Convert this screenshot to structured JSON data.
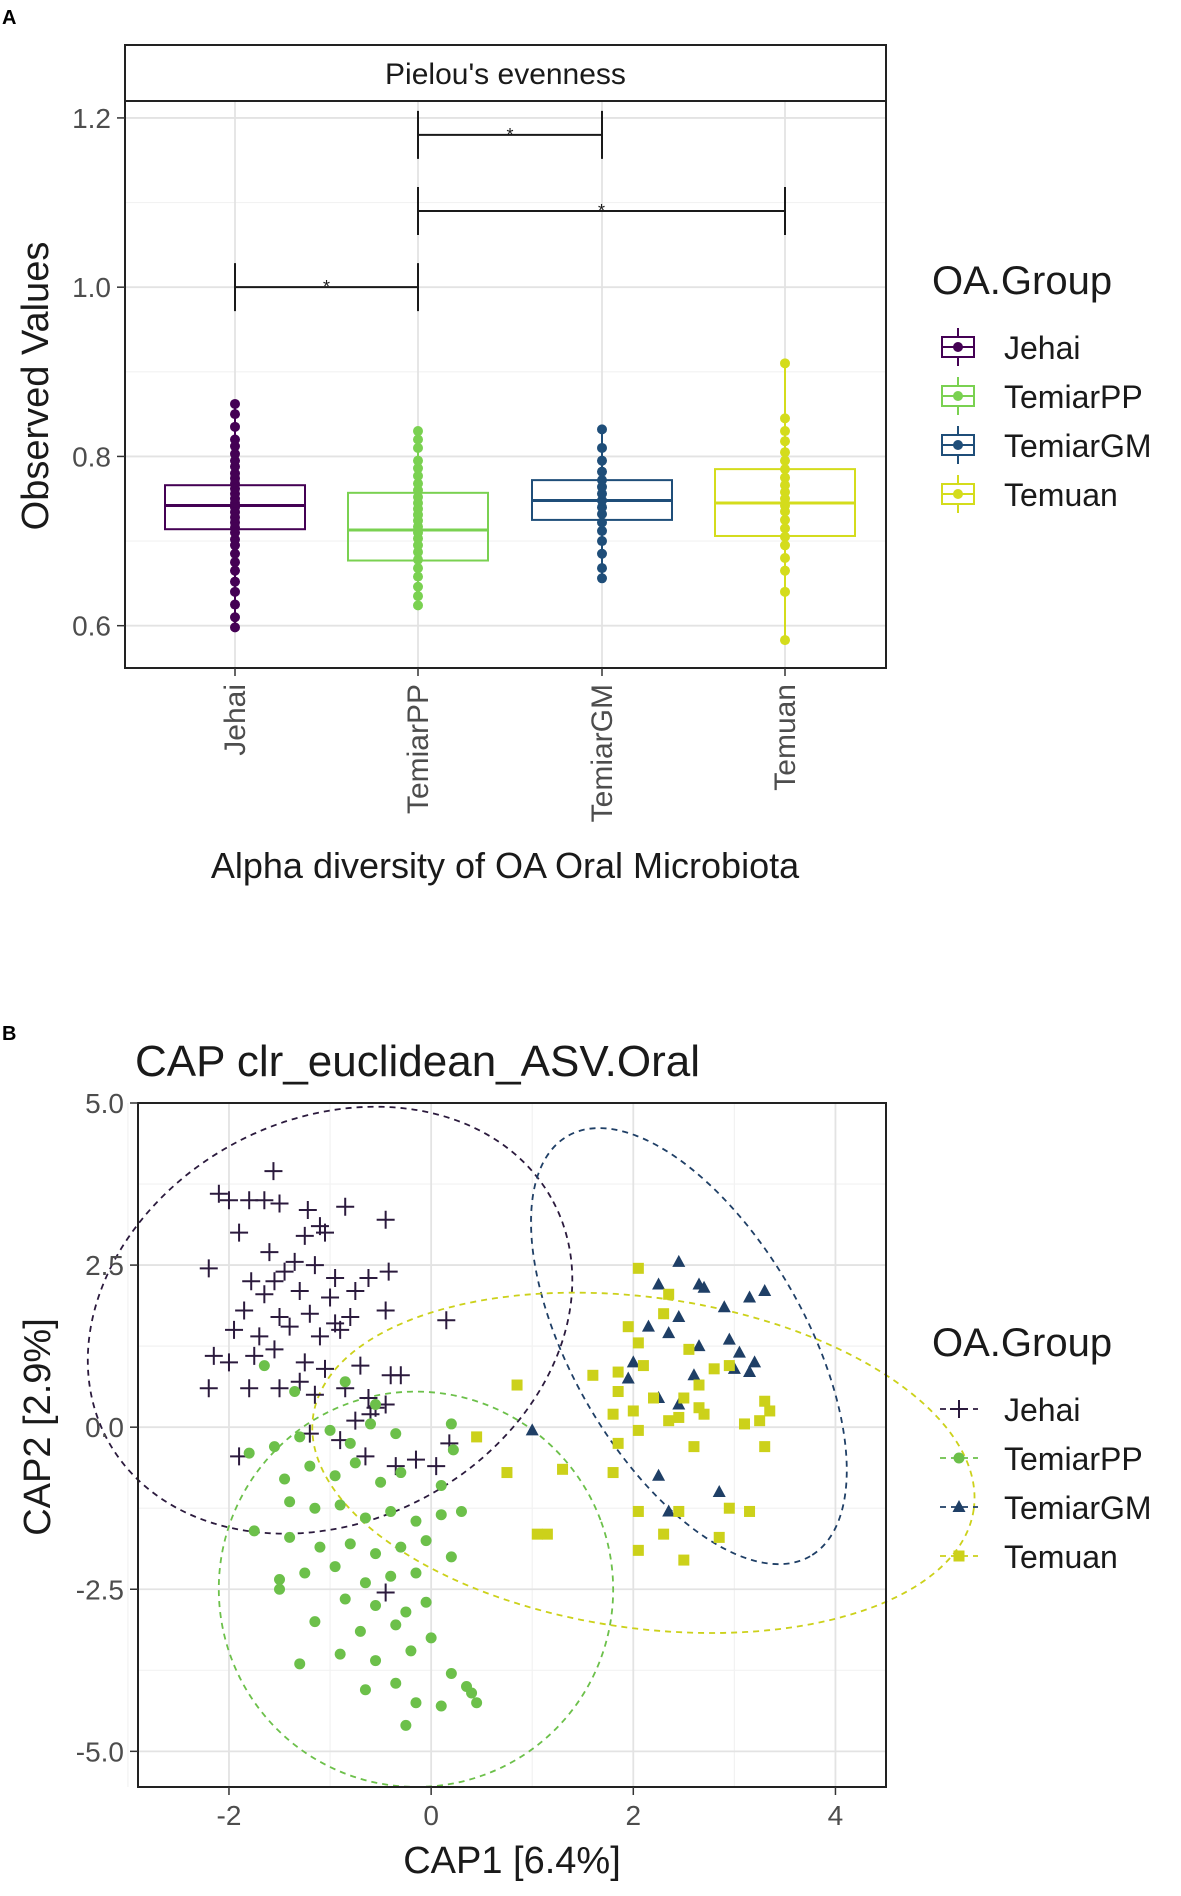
{
  "chart_data": [
    {
      "panel_label": "A",
      "type": "box",
      "strip_title": "Pielou's evenness",
      "ylabel": "Observed Values",
      "xlabel": "Alpha diversity of OA Oral Microbiota",
      "ylim": [
        0.55,
        1.22
      ],
      "yticks": [
        0.6,
        0.8,
        1.0,
        1.2
      ],
      "ytick_labels": [
        "0.6",
        "0.8",
        "1.0",
        "1.2"
      ],
      "categories": [
        "Jehai",
        "TemiarPP",
        "TemiarGM",
        "Temuan"
      ],
      "colors": [
        "#440154",
        "#7AD151",
        "#1F4E79",
        "#D4DC1C"
      ],
      "boxes": [
        {
          "name": "Jehai",
          "q1": 0.714,
          "median": 0.742,
          "q3": 0.766,
          "min": 0.598,
          "max": 0.862,
          "points": [
            0.598,
            0.61,
            0.625,
            0.64,
            0.652,
            0.665,
            0.675,
            0.685,
            0.695,
            0.702,
            0.71,
            0.716,
            0.722,
            0.728,
            0.734,
            0.74,
            0.745,
            0.75,
            0.756,
            0.762,
            0.768,
            0.774,
            0.78,
            0.788,
            0.795,
            0.803,
            0.812,
            0.82,
            0.835,
            0.85,
            0.862
          ]
        },
        {
          "name": "TemiarPP",
          "q1": 0.677,
          "median": 0.713,
          "q3": 0.757,
          "min": 0.624,
          "max": 0.83,
          "points": [
            0.624,
            0.635,
            0.646,
            0.658,
            0.668,
            0.678,
            0.687,
            0.695,
            0.703,
            0.71,
            0.717,
            0.724,
            0.731,
            0.738,
            0.745,
            0.752,
            0.76,
            0.768,
            0.777,
            0.786,
            0.795,
            0.81,
            0.82,
            0.83
          ]
        },
        {
          "name": "TemiarGM",
          "q1": 0.725,
          "median": 0.748,
          "q3": 0.772,
          "min": 0.656,
          "max": 0.832,
          "points": [
            0.656,
            0.668,
            0.685,
            0.7,
            0.712,
            0.722,
            0.732,
            0.74,
            0.748,
            0.756,
            0.764,
            0.772,
            0.782,
            0.795,
            0.81,
            0.832
          ]
        },
        {
          "name": "Temuan",
          "q1": 0.706,
          "median": 0.745,
          "q3": 0.785,
          "min": 0.583,
          "max": 0.91,
          "points": [
            0.583,
            0.64,
            0.665,
            0.68,
            0.695,
            0.705,
            0.715,
            0.725,
            0.735,
            0.742,
            0.75,
            0.758,
            0.766,
            0.775,
            0.785,
            0.795,
            0.805,
            0.818,
            0.83,
            0.845,
            0.91
          ]
        }
      ],
      "significance": [
        {
          "from": "Jehai",
          "to": "TemiarPP",
          "y": 1.0,
          "label": "*"
        },
        {
          "from": "TemiarPP",
          "to": "TemiarGM",
          "y": 1.18,
          "label": "*"
        },
        {
          "from": "TemiarPP",
          "to": "Temuan",
          "y": 1.09,
          "label": "*"
        }
      ],
      "legend": {
        "title": "OA.Group",
        "position": "right",
        "entries": [
          "Jehai",
          "TemiarPP",
          "TemiarGM",
          "Temuan"
        ]
      }
    },
    {
      "panel_label": "B",
      "type": "scatter",
      "title": "CAP clr_euclidean_ASV.Oral",
      "xlabel": "CAP1   [6.4%]",
      "ylabel": "CAP2   [2.9%]",
      "xlim": [
        -2.9,
        4.5
      ],
      "ylim": [
        -5.55,
        5.0
      ],
      "xticks": [
        -2,
        0,
        2,
        4
      ],
      "xtick_labels": [
        "-2",
        "0",
        "2",
        "4"
      ],
      "yticks": [
        -5.0,
        -2.5,
        0.0,
        2.5,
        5.0
      ],
      "ytick_labels": [
        "-5.0",
        "-2.5",
        "0.0",
        "2.5",
        "5.0"
      ],
      "series": [
        {
          "name": "Jehai",
          "color": "#2B1A3D",
          "marker": "+",
          "ellipse": {
            "cx": -1.0,
            "cy": 1.65,
            "rx": 2.5,
            "ry": 3.1,
            "angle": -28
          },
          "points": [
            [
              -1.56,
              3.95
            ],
            [
              -2.1,
              3.6
            ],
            [
              -2.0,
              3.5
            ],
            [
              -1.8,
              3.5
            ],
            [
              -1.65,
              3.5
            ],
            [
              -1.5,
              3.45
            ],
            [
              -1.22,
              3.35
            ],
            [
              -1.1,
              3.1
            ],
            [
              -0.85,
              3.4
            ],
            [
              -0.45,
              3.2
            ],
            [
              -1.9,
              3.0
            ],
            [
              -1.25,
              2.95
            ],
            [
              -1.05,
              3.0
            ],
            [
              -2.2,
              2.45
            ],
            [
              -1.6,
              2.7
            ],
            [
              -1.35,
              2.55
            ],
            [
              -1.15,
              2.5
            ],
            [
              -0.95,
              2.3
            ],
            [
              -0.62,
              2.3
            ],
            [
              -0.42,
              2.4
            ],
            [
              -1.45,
              2.4
            ],
            [
              -1.55,
              2.25
            ],
            [
              -1.78,
              2.25
            ],
            [
              -1.65,
              2.05
            ],
            [
              -1.3,
              2.1
            ],
            [
              -1.0,
              2.0
            ],
            [
              -0.75,
              2.1
            ],
            [
              -1.85,
              1.8
            ],
            [
              -1.5,
              1.7
            ],
            [
              -1.2,
              1.75
            ],
            [
              -0.95,
              1.6
            ],
            [
              -0.8,
              1.7
            ],
            [
              -0.45,
              1.8
            ],
            [
              -1.95,
              1.5
            ],
            [
              -1.7,
              1.4
            ],
            [
              -1.4,
              1.55
            ],
            [
              -1.1,
              1.4
            ],
            [
              -0.9,
              1.5
            ],
            [
              0.15,
              1.65
            ],
            [
              -1.55,
              1.2
            ],
            [
              -1.75,
              1.1
            ],
            [
              -1.25,
              1.0
            ],
            [
              -1.05,
              0.9
            ],
            [
              -0.7,
              0.95
            ],
            [
              -2.15,
              1.1
            ],
            [
              -2.0,
              1.0
            ],
            [
              -2.2,
              0.6
            ],
            [
              -1.8,
              0.6
            ],
            [
              -1.5,
              0.6
            ],
            [
              -1.3,
              0.7
            ],
            [
              -1.15,
              0.5
            ],
            [
              -0.85,
              0.6
            ],
            [
              -0.62,
              0.45
            ],
            [
              -0.55,
              0.3
            ],
            [
              -0.45,
              0.35
            ],
            [
              -0.3,
              0.8
            ],
            [
              -0.4,
              0.8
            ],
            [
              -0.6,
              0.2
            ],
            [
              -0.75,
              0.1
            ],
            [
              -0.9,
              -0.2
            ],
            [
              -1.2,
              -0.1
            ],
            [
              -1.9,
              -0.45
            ],
            [
              -0.65,
              -0.45
            ],
            [
              -0.35,
              -0.6
            ],
            [
              -0.15,
              -0.5
            ],
            [
              0.05,
              -0.6
            ],
            [
              0.18,
              -0.25
            ],
            [
              -0.45,
              -2.55
            ]
          ]
        },
        {
          "name": "TemiarPP",
          "color": "#6CC04A",
          "marker": "circle",
          "ellipse": {
            "cx": -0.15,
            "cy": -2.5,
            "rx": 1.95,
            "ry": 3.05,
            "angle": -20
          },
          "points": [
            [
              -1.65,
              0.95
            ],
            [
              -1.35,
              0.55
            ],
            [
              -0.85,
              0.7
            ],
            [
              -0.55,
              0.35
            ],
            [
              -1.8,
              -0.4
            ],
            [
              -1.55,
              -0.3
            ],
            [
              -1.3,
              -0.15
            ],
            [
              -1.0,
              -0.05
            ],
            [
              -0.8,
              -0.25
            ],
            [
              -0.6,
              0.05
            ],
            [
              -0.35,
              -0.1
            ],
            [
              0.2,
              0.05
            ],
            [
              0.22,
              -0.35
            ],
            [
              -1.45,
              -0.8
            ],
            [
              -1.2,
              -0.6
            ],
            [
              -0.95,
              -0.75
            ],
            [
              -0.75,
              -0.55
            ],
            [
              -0.5,
              -0.85
            ],
            [
              -0.3,
              -0.7
            ],
            [
              0.1,
              -0.9
            ],
            [
              -1.4,
              -1.15
            ],
            [
              -1.15,
              -1.25
            ],
            [
              -0.9,
              -1.2
            ],
            [
              -0.65,
              -1.4
            ],
            [
              -0.4,
              -1.3
            ],
            [
              -0.15,
              -1.45
            ],
            [
              0.1,
              -1.35
            ],
            [
              0.3,
              -1.3
            ],
            [
              -1.75,
              -1.6
            ],
            [
              -1.4,
              -1.7
            ],
            [
              -1.1,
              -1.85
            ],
            [
              -0.8,
              -1.8
            ],
            [
              -0.55,
              -1.95
            ],
            [
              -0.3,
              -1.85
            ],
            [
              -0.05,
              -1.75
            ],
            [
              0.2,
              -2.0
            ],
            [
              -1.5,
              -2.35
            ],
            [
              -1.25,
              -2.25
            ],
            [
              -0.95,
              -2.15
            ],
            [
              -0.65,
              -2.4
            ],
            [
              -0.4,
              -2.3
            ],
            [
              -0.15,
              -2.25
            ],
            [
              -1.5,
              -2.5
            ],
            [
              -0.85,
              -2.65
            ],
            [
              -0.55,
              -2.75
            ],
            [
              -0.25,
              -2.85
            ],
            [
              -0.05,
              -2.7
            ],
            [
              -1.15,
              -3.0
            ],
            [
              -0.7,
              -3.15
            ],
            [
              -0.35,
              -3.05
            ],
            [
              0.0,
              -3.25
            ],
            [
              -1.3,
              -3.65
            ],
            [
              -0.9,
              -3.5
            ],
            [
              -0.55,
              -3.6
            ],
            [
              -0.2,
              -3.45
            ],
            [
              0.2,
              -3.8
            ],
            [
              -0.65,
              -4.05
            ],
            [
              -0.35,
              -3.95
            ],
            [
              -0.15,
              -4.25
            ],
            [
              0.1,
              -4.3
            ],
            [
              0.4,
              -4.1
            ],
            [
              0.45,
              -4.25
            ],
            [
              -0.25,
              -4.6
            ],
            [
              0.35,
              -4.0
            ]
          ]
        },
        {
          "name": "TemiarGM",
          "color": "#1F3F66",
          "marker": "triangle",
          "ellipse": {
            "cx": 2.55,
            "cy": 1.25,
            "rx": 2.4,
            "ry": 1.8,
            "angle": 60
          },
          "points": [
            [
              2.45,
              2.55
            ],
            [
              2.25,
              2.2
            ],
            [
              2.65,
              2.2
            ],
            [
              2.7,
              2.15
            ],
            [
              2.9,
              1.85
            ],
            [
              3.15,
              2.0
            ],
            [
              3.3,
              2.1
            ],
            [
              2.45,
              1.7
            ],
            [
              2.15,
              1.55
            ],
            [
              2.35,
              1.45
            ],
            [
              2.65,
              1.25
            ],
            [
              2.95,
              1.35
            ],
            [
              3.05,
              1.15
            ],
            [
              3.2,
              1.0
            ],
            [
              3.15,
              0.85
            ],
            [
              2.0,
              1.0
            ],
            [
              2.6,
              0.8
            ],
            [
              3.0,
              0.9
            ],
            [
              1.95,
              0.75
            ],
            [
              2.25,
              0.45
            ],
            [
              2.45,
              0.35
            ],
            [
              1.0,
              -0.05
            ],
            [
              2.25,
              -0.75
            ],
            [
              2.85,
              -1.0
            ],
            [
              2.35,
              -1.3
            ]
          ]
        },
        {
          "name": "Temuan",
          "color": "#CCD11A",
          "marker": "square",
          "ellipse": {
            "cx": 2.1,
            "cy": -0.55,
            "rx": 3.3,
            "ry": 2.55,
            "angle": 8
          },
          "points": [
            [
              2.05,
              2.45
            ],
            [
              2.35,
              2.05
            ],
            [
              2.3,
              1.75
            ],
            [
              1.95,
              1.55
            ],
            [
              2.05,
              1.3
            ],
            [
              2.55,
              1.2
            ],
            [
              2.1,
              0.95
            ],
            [
              1.85,
              0.85
            ],
            [
              1.6,
              0.8
            ],
            [
              1.85,
              0.55
            ],
            [
              2.8,
              0.9
            ],
            [
              2.95,
              0.95
            ],
            [
              0.85,
              0.65
            ],
            [
              2.65,
              0.65
            ],
            [
              2.2,
              0.45
            ],
            [
              2.5,
              0.45
            ],
            [
              2.65,
              0.3
            ],
            [
              2.0,
              0.25
            ],
            [
              1.8,
              0.2
            ],
            [
              2.35,
              0.1
            ],
            [
              2.45,
              0.15
            ],
            [
              2.7,
              0.2
            ],
            [
              3.3,
              0.4
            ],
            [
              3.35,
              0.25
            ],
            [
              3.25,
              0.1
            ],
            [
              3.1,
              0.05
            ],
            [
              2.05,
              -0.05
            ],
            [
              1.85,
              -0.25
            ],
            [
              2.6,
              -0.3
            ],
            [
              3.3,
              -0.3
            ],
            [
              0.45,
              -0.15
            ],
            [
              1.8,
              -0.7
            ],
            [
              1.3,
              -0.65
            ],
            [
              0.75,
              -0.7
            ],
            [
              2.05,
              -1.3
            ],
            [
              2.45,
              -1.3
            ],
            [
              2.95,
              -1.25
            ],
            [
              3.15,
              -1.3
            ],
            [
              1.05,
              -1.65
            ],
            [
              1.15,
              -1.65
            ],
            [
              2.3,
              -1.65
            ],
            [
              2.85,
              -1.7
            ],
            [
              2.05,
              -1.9
            ],
            [
              2.5,
              -2.05
            ]
          ]
        }
      ],
      "legend": {
        "title": "OA.Group",
        "position": "right",
        "entries": [
          "Jehai",
          "TemiarPP",
          "TemiarGM",
          "Temuan"
        ]
      }
    }
  ]
}
